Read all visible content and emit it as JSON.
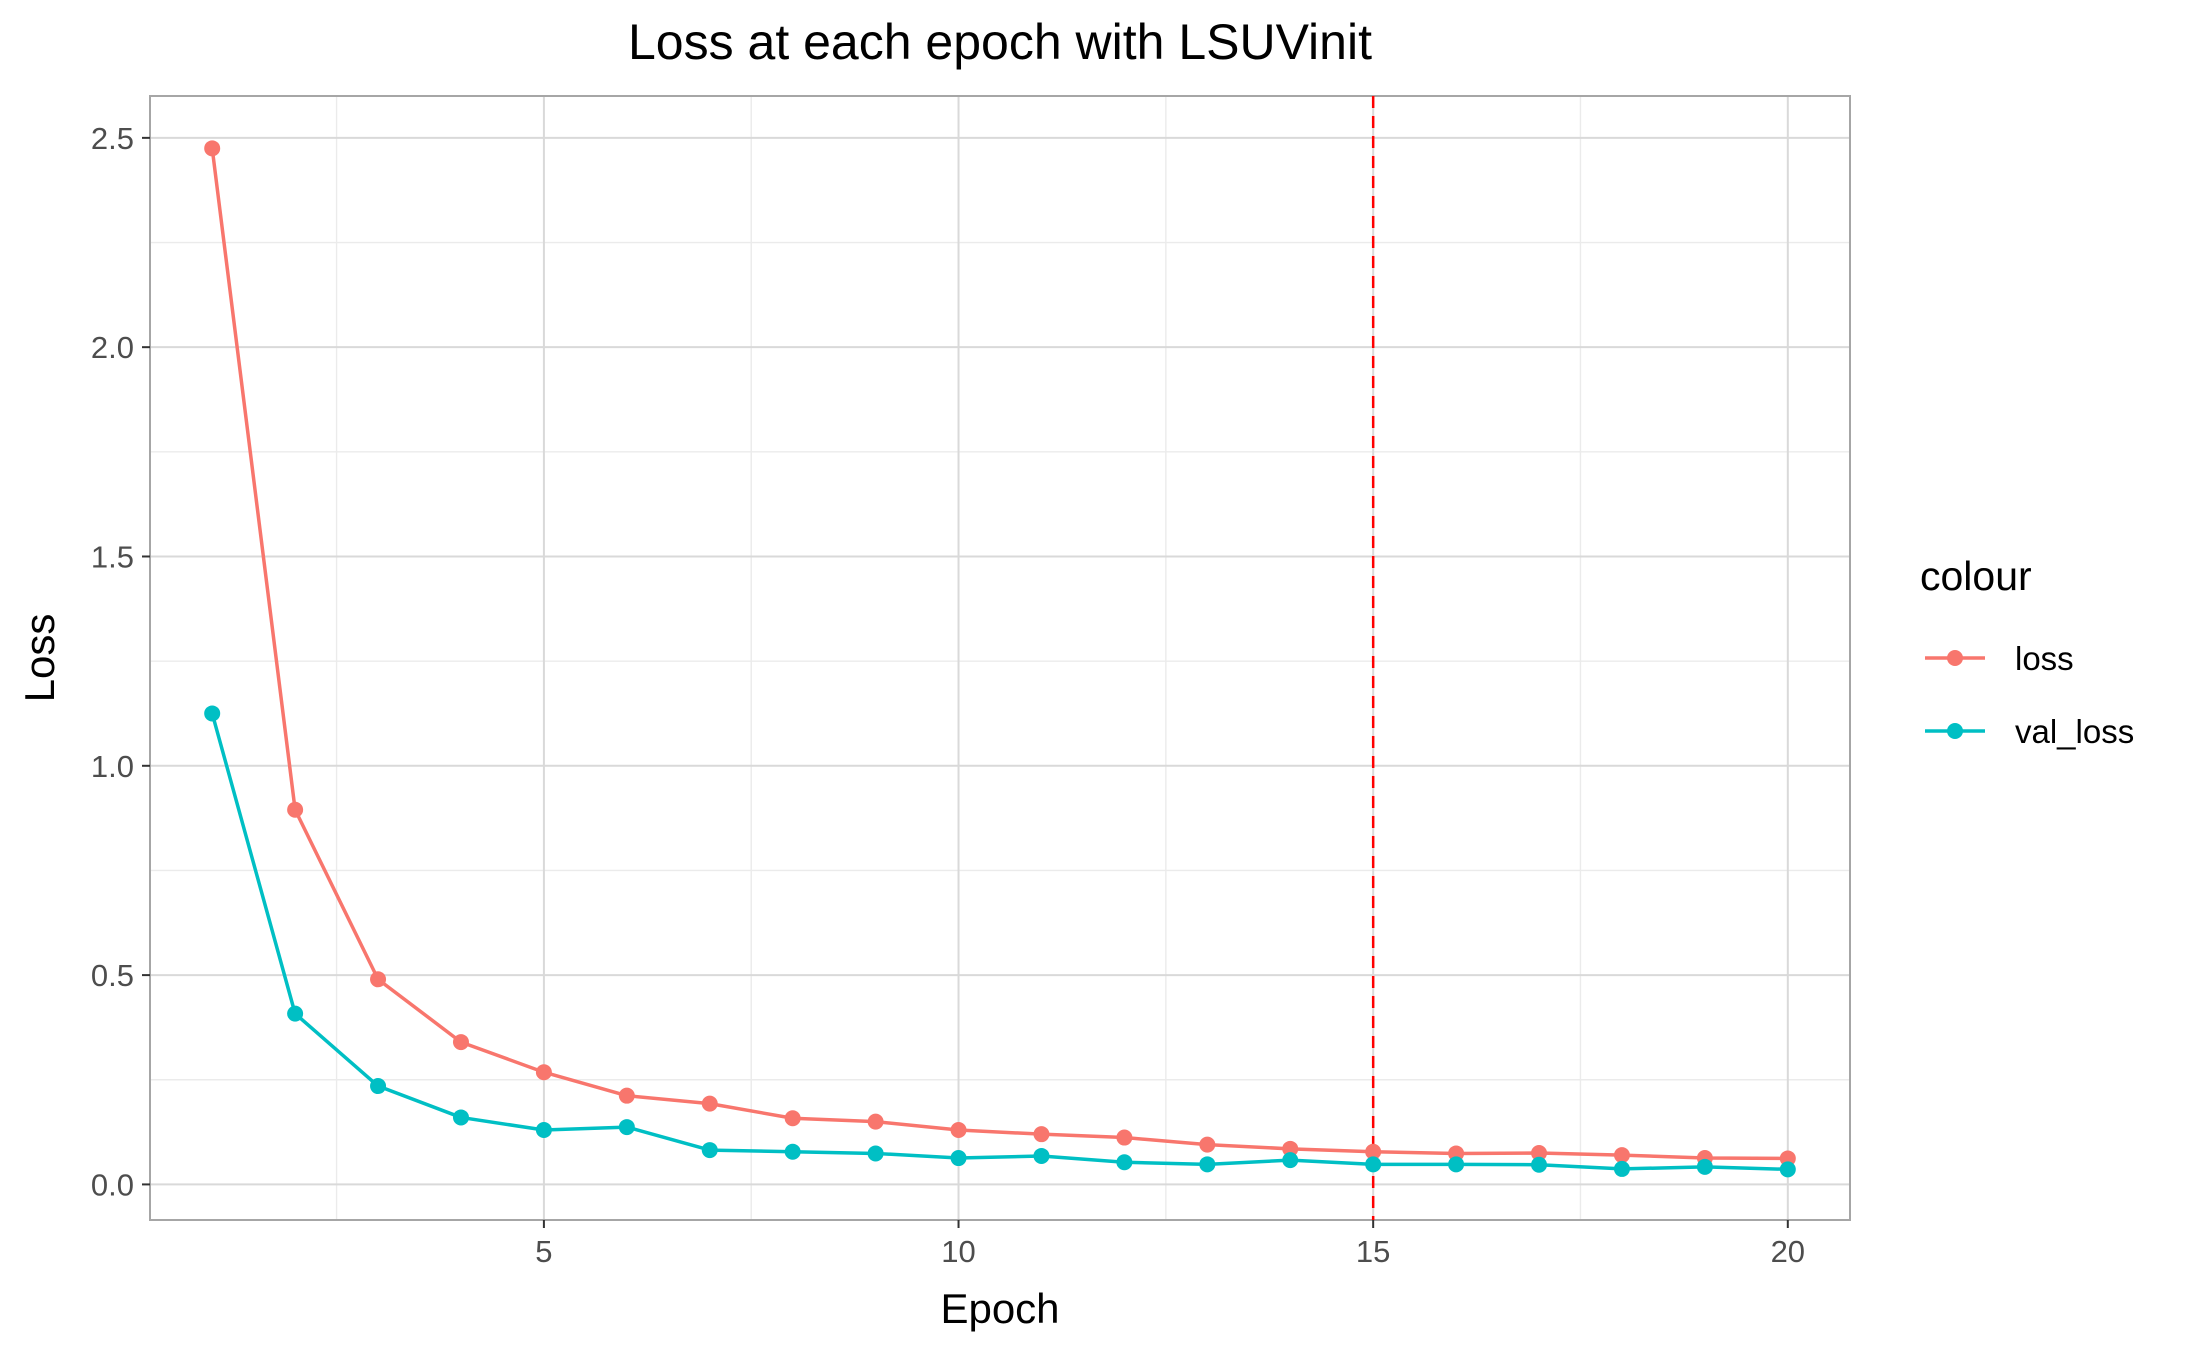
{
  "chart_data": {
    "type": "line",
    "title": "Loss at each epoch with LSUVinit",
    "xlabel": "Epoch",
    "ylabel": "Loss",
    "xlim": [
      0.25,
      20.75
    ],
    "ylim": [
      -0.085,
      2.6
    ],
    "x_ticks": [
      5,
      10,
      15,
      20
    ],
    "x_minor_ticks": [
      2.5,
      7.5,
      12.5,
      17.5
    ],
    "y_ticks": [
      0.0,
      0.5,
      1.0,
      1.5,
      2.0,
      2.5
    ],
    "y_minor_ticks": [
      0.25,
      0.75,
      1.25,
      1.75,
      2.25
    ],
    "x_tick_labels": [
      "5",
      "10",
      "15",
      "20"
    ],
    "y_tick_labels": [
      "0.0",
      "0.5",
      "1.0",
      "1.5",
      "2.0",
      "2.5"
    ],
    "x": [
      1,
      2,
      3,
      4,
      5,
      6,
      7,
      8,
      9,
      10,
      11,
      12,
      13,
      14,
      15,
      16,
      17,
      18,
      19,
      20
    ],
    "series": [
      {
        "name": "loss",
        "color": "#F8766D",
        "values": [
          2.475,
          0.895,
          0.49,
          0.34,
          0.268,
          0.212,
          0.193,
          0.158,
          0.15,
          0.13,
          0.12,
          0.112,
          0.095,
          0.085,
          0.078,
          0.074,
          0.075,
          0.07,
          0.063,
          0.062
        ]
      },
      {
        "name": "val_loss",
        "color": "#00BFC4",
        "values": [
          1.125,
          0.408,
          0.235,
          0.16,
          0.13,
          0.137,
          0.082,
          0.078,
          0.074,
          0.063,
          0.068,
          0.053,
          0.048,
          0.058,
          0.048,
          0.048,
          0.047,
          0.037,
          0.042,
          0.036
        ]
      }
    ],
    "vline": {
      "x": 15,
      "color": "#FF0000",
      "style": "dashed"
    },
    "legend": {
      "title": "colour",
      "placement": "right"
    },
    "grid": true,
    "colors": {
      "panel_border": "#A6A6A6",
      "grid_major": "#D9D9D9",
      "grid_minor": "#EBEBEB"
    }
  }
}
